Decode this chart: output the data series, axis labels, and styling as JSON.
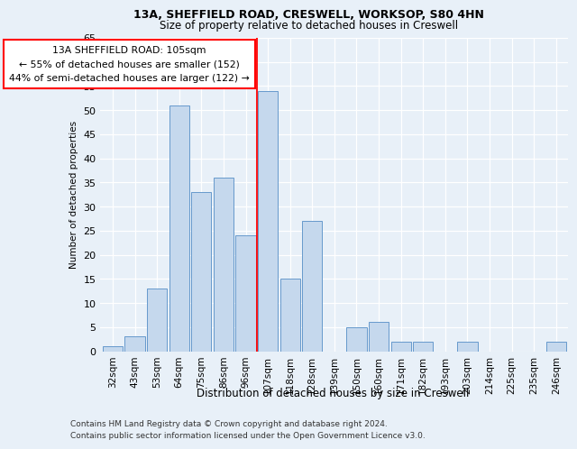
{
  "title1": "13A, SHEFFIELD ROAD, CRESWELL, WORKSOP, S80 4HN",
  "title2": "Size of property relative to detached houses in Creswell",
  "xlabel": "Distribution of detached houses by size in Creswell",
  "ylabel": "Number of detached properties",
  "categories": [
    "32sqm",
    "43sqm",
    "53sqm",
    "64sqm",
    "75sqm",
    "86sqm",
    "96sqm",
    "107sqm",
    "118sqm",
    "128sqm",
    "139sqm",
    "150sqm",
    "160sqm",
    "171sqm",
    "182sqm",
    "193sqm",
    "203sqm",
    "214sqm",
    "225sqm",
    "235sqm",
    "246sqm"
  ],
  "values": [
    1,
    3,
    13,
    51,
    33,
    36,
    24,
    54,
    15,
    27,
    0,
    5,
    6,
    2,
    2,
    0,
    2,
    0,
    0,
    0,
    2
  ],
  "bar_color": "#c5d8ed",
  "bar_edge_color": "#6699cc",
  "red_line_x": 6.5,
  "annotation_title": "13A SHEFFIELD ROAD: 105sqm",
  "annotation_line2": "← 55% of detached houses are smaller (152)",
  "annotation_line3": "44% of semi-detached houses are larger (122) →",
  "ylim": [
    0,
    65
  ],
  "yticks": [
    0,
    5,
    10,
    15,
    20,
    25,
    30,
    35,
    40,
    45,
    50,
    55,
    60,
    65
  ],
  "bg_color": "#e8f0f8",
  "footer1": "Contains HM Land Registry data © Crown copyright and database right 2024.",
  "footer2": "Contains public sector information licensed under the Open Government Licence v3.0."
}
